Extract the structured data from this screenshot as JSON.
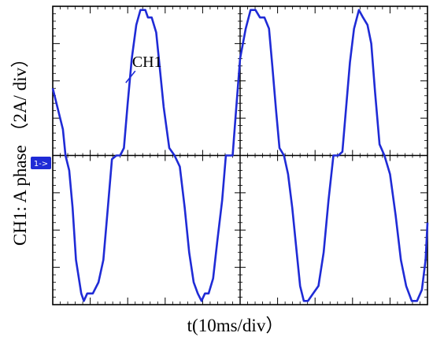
{
  "chart_data": {
    "type": "line",
    "ylabel": "CH1:  A phase  （2A/ div）",
    "xlabel": "t(10ms/div）",
    "annotations": [
      {
        "text": "CH1",
        "x": 19.5,
        "y": 1.95
      }
    ],
    "channel_marker": "1->",
    "xlim": [
      0,
      100
    ],
    "ylim": [
      -4,
      4
    ],
    "grid": {
      "x_divisions": 10,
      "y_divisions": 8,
      "major_lines": "center cross",
      "minor_ticks": 5
    },
    "trace_color": "#1f2bd6",
    "series": [
      {
        "name": "CH1",
        "x": [
          0,
          2.7,
          3.4,
          4.4,
          5.3,
          6.2,
          7.6,
          8.3,
          9.2,
          10.7,
          12.2,
          13.5,
          14.7,
          15.8,
          17.0,
          18.0,
          19.0,
          20.0,
          21.1,
          22.3,
          23.4,
          24.7,
          25.4,
          26.4,
          27.6,
          28.5,
          29.6,
          31.1,
          32.5,
          33.9,
          35.2,
          36.4,
          37.6,
          38.7,
          39.7,
          40.6,
          41.6,
          42.8,
          43.9,
          45.2,
          46.2,
          47.1,
          48.0,
          48.9,
          50.0,
          51.5,
          52.8,
          54.1,
          55.3,
          56.5,
          57.7,
          58.6,
          59.6,
          60.5,
          61.7,
          62.8,
          63.9,
          65.1,
          66.0,
          67.0,
          68.1,
          69.5,
          70.9,
          72.3,
          73.6,
          74.9,
          76.2,
          77.3,
          78.3,
          79.3,
          80.4,
          81.7,
          82.8,
          84.0,
          85.0,
          86.0,
          87.2,
          88.5,
          90.0,
          91.5,
          92.9,
          94.3,
          95.8,
          97.2,
          98.5,
          99.5,
          100
        ],
        "y": [
          1.8,
          0.7,
          0.0,
          -0.4,
          -1.4,
          -2.8,
          -3.7,
          -3.9,
          -3.7,
          -3.7,
          -3.4,
          -2.8,
          -1.4,
          -0.1,
          0.0,
          0.0,
          0.2,
          1.4,
          2.6,
          3.5,
          3.9,
          3.9,
          3.7,
          3.7,
          3.3,
          2.4,
          1.3,
          0.2,
          0.0,
          -0.3,
          -1.4,
          -2.6,
          -3.4,
          -3.7,
          -3.9,
          -3.7,
          -3.7,
          -3.3,
          -2.3,
          -1.2,
          0.0,
          0.0,
          0.0,
          1.2,
          2.6,
          3.4,
          3.9,
          3.9,
          3.7,
          3.7,
          3.4,
          2.4,
          1.2,
          0.2,
          0.0,
          -0.5,
          -1.4,
          -2.6,
          -3.5,
          -3.9,
          -3.9,
          -3.7,
          -3.5,
          -2.6,
          -1.2,
          0.0,
          0.0,
          0.1,
          1.3,
          2.5,
          3.4,
          3.9,
          3.7,
          3.5,
          3.0,
          1.7,
          0.3,
          0.0,
          -0.5,
          -1.6,
          -2.8,
          -3.5,
          -3.9,
          -3.9,
          -3.6,
          -2.8,
          -1.8
        ]
      }
    ]
  }
}
